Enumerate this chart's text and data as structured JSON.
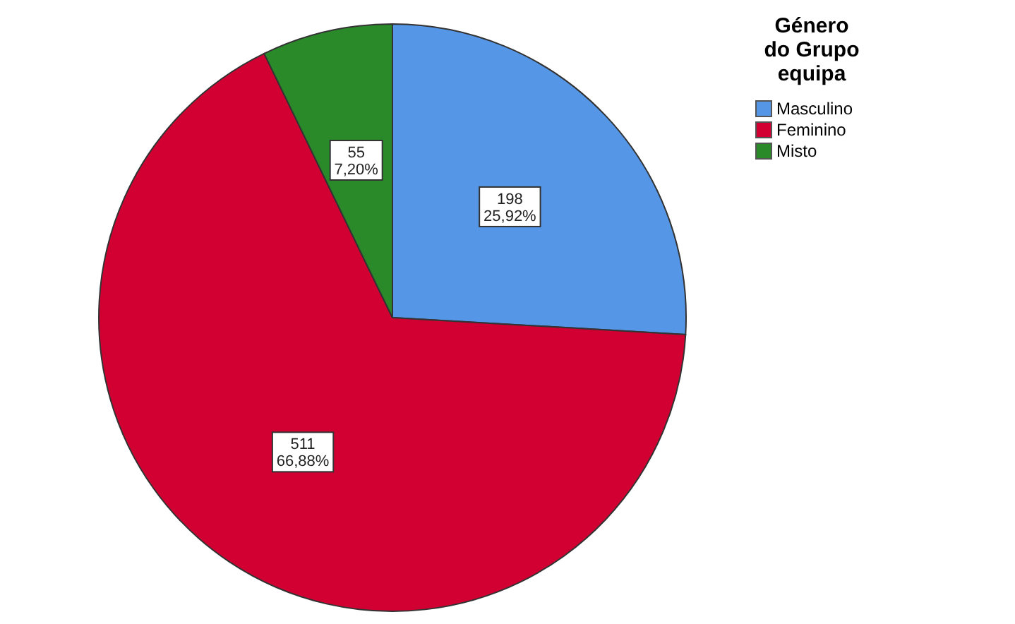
{
  "chart_data": {
    "type": "pie",
    "legend_title": "Género do Grupo equipa",
    "legend": "top right",
    "categories": [
      "Masculino",
      "Feminino",
      "Misto"
    ],
    "values": [
      198,
      511,
      55
    ],
    "colors": [
      "#5596e6",
      "#d20032",
      "#2a8a2a"
    ],
    "value_labels": [
      "198\n25,92%",
      "511\n66,88%",
      "55\n7,20%"
    ]
  }
}
